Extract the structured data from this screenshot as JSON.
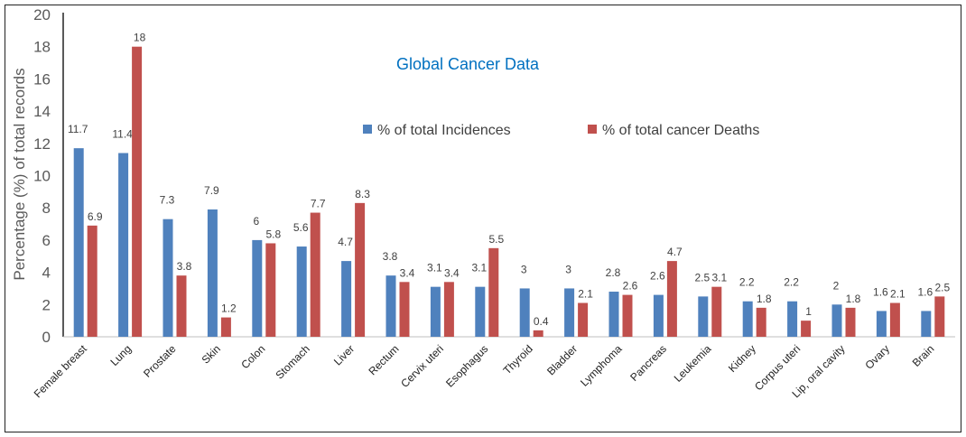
{
  "chart_data": {
    "type": "bar",
    "title": "Global Cancer Data",
    "xlabel": "",
    "ylabel": "Percentage (%) of total records",
    "ylim": [
      0,
      20
    ],
    "yticks": [
      0,
      2,
      4,
      6,
      8,
      10,
      12,
      14,
      16,
      18,
      20
    ],
    "grid": false,
    "legend_position": "top-center",
    "categories": [
      "Female breast",
      "Lung",
      "Prostate",
      "Skin",
      "Colon",
      "Stomach",
      "Liver",
      "Rectum",
      "Cervix uteri",
      "Esophagus",
      "Thyroid",
      "Bladder",
      "Lymphoma",
      "Pancreas",
      "Leukemia",
      "Kidney",
      "Corpus uteri",
      "Lip, oral cavity",
      "Ovary",
      "Brain"
    ],
    "series": [
      {
        "name": "% of total Incidences",
        "color": "#4F81BD",
        "values": [
          11.7,
          11.4,
          7.3,
          7.9,
          6,
          5.6,
          4.7,
          3.8,
          3.1,
          3.1,
          3,
          3,
          2.8,
          2.6,
          2.5,
          2.2,
          2.2,
          2,
          1.6,
          1.6
        ]
      },
      {
        "name": "% of total cancer Deaths",
        "color": "#C0504D",
        "values": [
          6.9,
          18,
          3.8,
          1.2,
          5.8,
          7.7,
          8.3,
          3.4,
          3.4,
          5.5,
          0.4,
          2.1,
          2.6,
          4.7,
          3.1,
          1.8,
          1,
          1.8,
          2.1,
          2.5
        ]
      }
    ],
    "title_color": "#0070C0"
  }
}
